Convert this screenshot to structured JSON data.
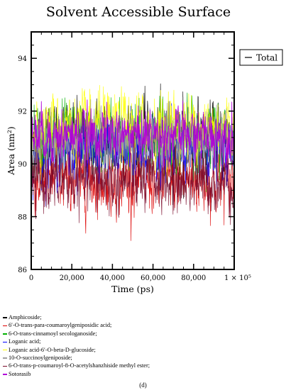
{
  "chart_data": {
    "type": "line",
    "title": "Solvent Accessible Surface",
    "xlabel": "Time (ps)",
    "ylabel": "Area (nm²)",
    "xlim": [
      0,
      100000
    ],
    "ylim": [
      86,
      95
    ],
    "x_ticks": [
      0,
      20000,
      40000,
      60000,
      80000,
      100000
    ],
    "x_tick_labels": [
      "0",
      "20,000",
      "40,000",
      "60,000",
      "80,000",
      "1 × 10⁵"
    ],
    "y_ticks": [
      86,
      88,
      90,
      92,
      94
    ],
    "y_tick_labels": [
      "86",
      "88",
      "90",
      "92",
      "94"
    ],
    "inner_legend": {
      "label": "Total",
      "position": "top-right outside"
    },
    "grid": false,
    "series": [
      {
        "name": "Amphicoside;",
        "color": "#000000",
        "mean": 90.9,
        "spread": 1.25
      },
      {
        "name": "6′-O-trans-para-coumaroylgeniposidic acid;",
        "color": "#dd0000",
        "mean": 89.4,
        "spread": 1.1
      },
      {
        "name": "6-O-trans-cinnamoyl secologanoside;",
        "color": "#00b000",
        "mean": 91.0,
        "spread": 1.15
      },
      {
        "name": "Loganic acid;",
        "color": "#0000ff",
        "mean": 90.5,
        "spread": 1.05
      },
      {
        "name": "Loganic acid-6′-O-beta-D-glucoside;",
        "color": "#ffff00",
        "mean": 91.4,
        "spread": 1.15
      },
      {
        "name": "10-O-succinoylgeniposide;",
        "color": "#a0a0a0",
        "mean": 90.8,
        "spread": 1.05
      },
      {
        "name": "6-O-trans-p-coumaroyl-8-O-acetylshanzhiside methyl ester;",
        "color": "#7a0a2a",
        "mean": 89.3,
        "spread": 1.0
      },
      {
        "name": "Sotorasib",
        "color": "#b000d8",
        "mean": 91.1,
        "spread": 0.85
      }
    ]
  },
  "legend_entries": [
    {
      "text": "Amphicoside;",
      "color": "#000000"
    },
    {
      "text": "6′-O-trans-para-coumaroylgeniposidic acid;",
      "color": "#dd0000"
    },
    {
      "text": "6-O-trans-cinnamoyl secologanoside;",
      "color": "#00b000"
    },
    {
      "text": "Loganic acid;",
      "color": "#0000ff"
    },
    {
      "text": "Loganic acid-6′-O-beta-D-glucoside;",
      "color": "#ffff00"
    },
    {
      "text": "10-O-succinoylgeniposide;",
      "color": "#a0a0a0"
    },
    {
      "text": "6-O-trans-p-coumaroyl-8-O-acetylshanzhiside methyl ester;",
      "color": "#7a0a2a"
    },
    {
      "text": "Sotorasib",
      "color": "#b000d8"
    }
  ],
  "panel_label": "(d)"
}
